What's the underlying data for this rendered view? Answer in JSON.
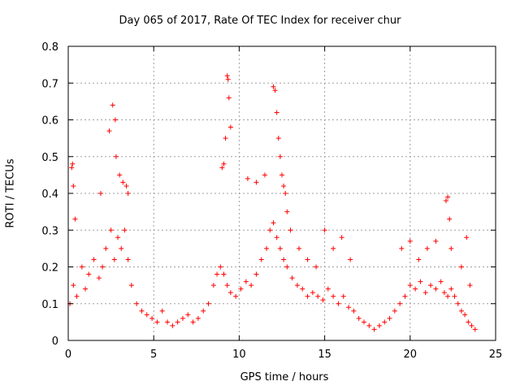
{
  "chart_data": {
    "type": "scatter",
    "title": "Day 065 of 2017, Rate Of TEC Index for receiver chur",
    "xlabel": "GPS time / hours",
    "ylabel": "ROTI / TECUs",
    "xlim": [
      0,
      25
    ],
    "ylim": [
      0,
      0.8
    ],
    "xticks": [
      "0",
      "5",
      "10",
      "15",
      "20",
      "25"
    ],
    "yticks": [
      "0",
      "0.1",
      "0.2",
      "0.3",
      "0.4",
      "0.5",
      "0.6",
      "0.7",
      "0.8"
    ],
    "grid": true,
    "marker": "+",
    "color": "#ff0000",
    "series": [
      {
        "x": [
          0.1,
          0.3,
          0.5,
          0.8,
          1.0,
          1.2,
          1.5,
          1.8,
          2.0,
          2.2,
          2.5,
          2.7,
          2.9,
          3.1,
          3.3,
          3.5,
          3.7,
          4.0,
          4.3,
          4.6,
          4.9,
          5.2,
          5.5,
          5.8,
          6.1,
          6.4,
          6.7,
          7.0,
          7.3,
          7.6,
          7.9,
          8.2,
          8.5,
          8.7,
          8.9,
          9.1,
          9.3,
          9.5,
          9.8,
          10.1,
          10.4,
          10.7,
          11.0,
          11.3,
          11.6,
          11.8,
          12.0,
          12.2,
          12.4,
          12.6,
          12.8,
          13.1,
          13.4,
          13.7,
          14.0,
          14.3,
          14.6,
          14.9,
          15.2,
          15.5,
          15.8,
          16.1,
          16.4,
          16.7,
          17.0,
          17.3,
          17.6,
          17.9,
          18.2,
          18.5,
          18.8,
          19.1,
          19.4,
          19.7,
          20.0,
          20.3,
          20.6,
          20.9,
          21.2,
          21.5,
          21.8,
          22.0,
          22.2,
          22.4,
          22.6,
          22.8,
          23.0,
          23.2,
          23.4,
          23.6,
          23.8,
          0.2,
          0.25,
          0.3,
          0.4,
          1.9,
          2.4,
          2.6,
          2.75,
          2.8,
          3.0,
          3.2,
          3.4,
          3.5,
          9.0,
          9.1,
          9.2,
          9.3,
          9.35,
          9.4,
          9.5,
          10.5,
          11.0,
          11.5,
          12.0,
          12.1,
          12.2,
          12.3,
          12.4,
          12.5,
          12.6,
          12.7,
          12.8,
          13.0,
          13.5,
          14.0,
          14.5,
          15.0,
          15.5,
          16.0,
          16.5,
          19.5,
          20.0,
          20.5,
          21.0,
          21.5,
          22.1,
          22.2,
          22.3,
          22.4,
          23.0,
          23.3,
          23.5
        ],
        "y": [
          0.1,
          0.15,
          0.12,
          0.2,
          0.14,
          0.18,
          0.22,
          0.17,
          0.2,
          0.25,
          0.3,
          0.22,
          0.28,
          0.25,
          0.3,
          0.22,
          0.15,
          0.1,
          0.08,
          0.07,
          0.06,
          0.05,
          0.08,
          0.05,
          0.04,
          0.05,
          0.06,
          0.07,
          0.05,
          0.06,
          0.08,
          0.1,
          0.15,
          0.18,
          0.2,
          0.18,
          0.15,
          0.13,
          0.12,
          0.14,
          0.16,
          0.15,
          0.18,
          0.22,
          0.25,
          0.3,
          0.32,
          0.28,
          0.25,
          0.22,
          0.2,
          0.17,
          0.15,
          0.14,
          0.12,
          0.13,
          0.12,
          0.11,
          0.14,
          0.12,
          0.1,
          0.12,
          0.09,
          0.08,
          0.06,
          0.05,
          0.04,
          0.03,
          0.04,
          0.05,
          0.06,
          0.08,
          0.1,
          0.12,
          0.15,
          0.14,
          0.16,
          0.13,
          0.15,
          0.14,
          0.16,
          0.13,
          0.12,
          0.14,
          0.12,
          0.1,
          0.08,
          0.07,
          0.05,
          0.04,
          0.03,
          0.47,
          0.48,
          0.42,
          0.33,
          0.4,
          0.57,
          0.64,
          0.6,
          0.5,
          0.45,
          0.43,
          0.42,
          0.4,
          0.47,
          0.48,
          0.55,
          0.72,
          0.71,
          0.66,
          0.58,
          0.44,
          0.43,
          0.45,
          0.69,
          0.68,
          0.62,
          0.55,
          0.5,
          0.45,
          0.42,
          0.4,
          0.35,
          0.3,
          0.25,
          0.22,
          0.2,
          0.3,
          0.25,
          0.28,
          0.22,
          0.25,
          0.27,
          0.22,
          0.25,
          0.27,
          0.38,
          0.39,
          0.33,
          0.25,
          0.2,
          0.28,
          0.15
        ]
      }
    ]
  }
}
